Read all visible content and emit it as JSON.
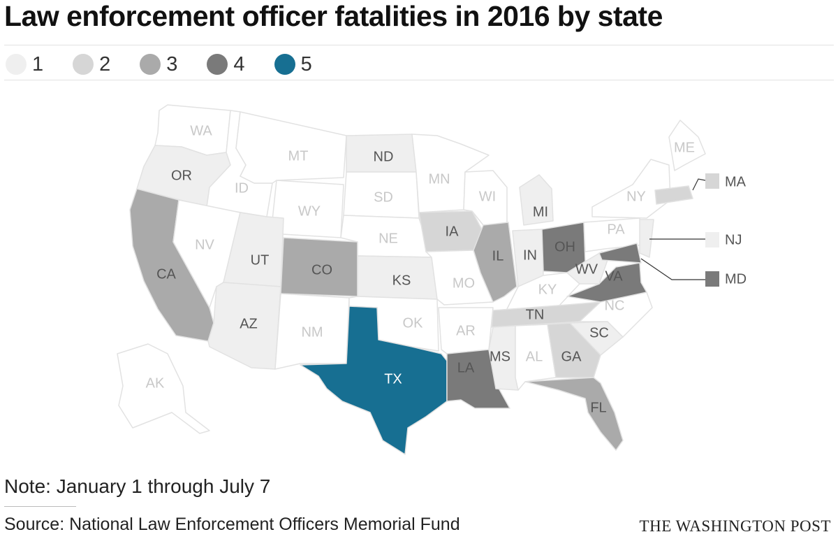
{
  "title": "Law enforcement officer fatalities in 2016 by state",
  "legend": [
    {
      "label": "1",
      "color": "#efefef"
    },
    {
      "label": "2",
      "color": "#d6d6d6"
    },
    {
      "label": "3",
      "color": "#aaaaaa"
    },
    {
      "label": "4",
      "color": "#7a7a7a"
    },
    {
      "label": "5",
      "color": "#176f92"
    }
  ],
  "colors": {
    "none": "#ffffff",
    "border": "#e2e2e2",
    "label_dark": "#555555",
    "label_light": "#ffffff",
    "label_empty": "#c8c8c8"
  },
  "states": [
    {
      "abbr": "WA",
      "value": 0
    },
    {
      "abbr": "OR",
      "value": 1
    },
    {
      "abbr": "CA",
      "value": 3
    },
    {
      "abbr": "ID",
      "value": 0
    },
    {
      "abbr": "NV",
      "value": 0
    },
    {
      "abbr": "MT",
      "value": 0
    },
    {
      "abbr": "WY",
      "value": 0
    },
    {
      "abbr": "UT",
      "value": 1
    },
    {
      "abbr": "AZ",
      "value": 1
    },
    {
      "abbr": "CO",
      "value": 3
    },
    {
      "abbr": "NM",
      "value": 0
    },
    {
      "abbr": "ND",
      "value": 1
    },
    {
      "abbr": "SD",
      "value": 0
    },
    {
      "abbr": "NE",
      "value": 0
    },
    {
      "abbr": "KS",
      "value": 1
    },
    {
      "abbr": "OK",
      "value": 0
    },
    {
      "abbr": "TX",
      "value": 5
    },
    {
      "abbr": "MN",
      "value": 0
    },
    {
      "abbr": "IA",
      "value": 2
    },
    {
      "abbr": "MO",
      "value": 0
    },
    {
      "abbr": "AR",
      "value": 0
    },
    {
      "abbr": "LA",
      "value": 4
    },
    {
      "abbr": "WI",
      "value": 0
    },
    {
      "abbr": "IL",
      "value": 3
    },
    {
      "abbr": "MI",
      "value": 1
    },
    {
      "abbr": "IN",
      "value": 1
    },
    {
      "abbr": "OH",
      "value": 4
    },
    {
      "abbr": "KY",
      "value": 0
    },
    {
      "abbr": "TN",
      "value": 2
    },
    {
      "abbr": "MS",
      "value": 1
    },
    {
      "abbr": "AL",
      "value": 0
    },
    {
      "abbr": "GA",
      "value": 2
    },
    {
      "abbr": "FL",
      "value": 3
    },
    {
      "abbr": "SC",
      "value": 1
    },
    {
      "abbr": "NC",
      "value": 0
    },
    {
      "abbr": "VA",
      "value": 4
    },
    {
      "abbr": "WV",
      "value": 1
    },
    {
      "abbr": "PA",
      "value": 0
    },
    {
      "abbr": "NY",
      "value": 0
    },
    {
      "abbr": "ME",
      "value": 0
    },
    {
      "abbr": "AK",
      "value": 0
    },
    {
      "abbr": "MA",
      "value": 2
    },
    {
      "abbr": "NJ",
      "value": 1
    },
    {
      "abbr": "MD",
      "value": 4
    }
  ],
  "note": "Note: January 1 through July 7",
  "source": "Source: National Law Enforcement Officers Memorial Fund",
  "credit": "THE WASHINGTON POST"
}
